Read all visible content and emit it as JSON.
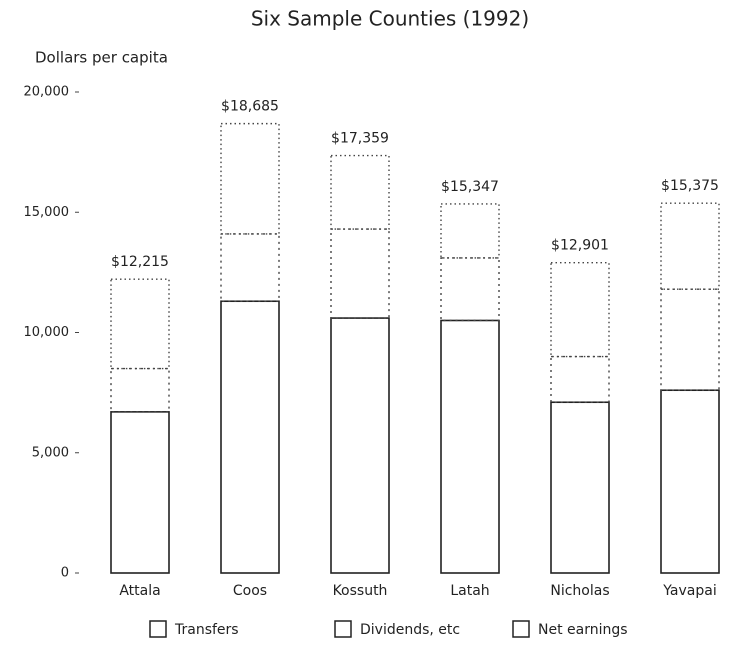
{
  "chart_data": {
    "type": "stacked_bar",
    "title": "Six Sample Counties (1992)",
    "y_label": "Dollars per capita",
    "categories": [
      "Attala",
      "Coos",
      "Kossuth",
      "Latah",
      "Nicholas",
      "Yavapai"
    ],
    "series": [
      {
        "name": "Net earnings",
        "color": "#222222",
        "values": [
          6700,
          11300,
          10600,
          10500,
          7100,
          7600
        ]
      },
      {
        "name": "Dividends, etc",
        "color": "#444444",
        "values": [
          1800,
          2800,
          3700,
          2600,
          1900,
          4200
        ]
      },
      {
        "name": "Transfers",
        "color": "#444444",
        "values": [
          3715,
          4585,
          3059,
          2247,
          3901,
          3575
        ]
      }
    ],
    "legend_order": [
      2,
      1,
      0
    ],
    "totals": [
      12215,
      18685,
      17359,
      15347,
      12901,
      15375
    ],
    "total_labels": [
      "$12,215",
      "$18,685",
      "$17,359",
      "$15,347",
      "$12,901",
      "$15,375"
    ],
    "ylim": [
      0,
      20000
    ],
    "yticks": [
      0,
      {
        "value": 5000,
        "label": "5,000"
      },
      {
        "value": 10000,
        "label": "10,000"
      },
      {
        "value": 15000,
        "label": "15,000"
      },
      {
        "value": 20000,
        "label": "20,000"
      }
    ]
  }
}
